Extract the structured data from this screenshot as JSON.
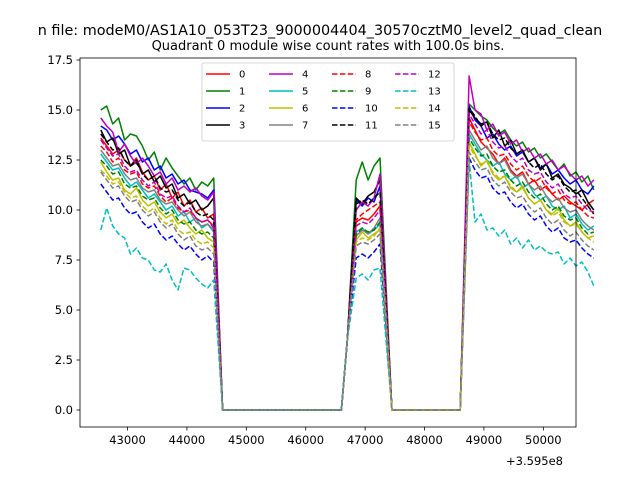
{
  "header": {
    "title_line1": "n file: modeM0/AS1A10_053T23_9000004404_30570cztM0_level2_quad_clean",
    "title_line2": "Quadrant 0 module wise count rates with 100.0s bins."
  },
  "chart_data": {
    "type": "line",
    "title": "Quadrant 0 module wise count rates with 100.0s bins.",
    "xlabel": "",
    "ylabel": "",
    "x_offset_label": "+3.595e8",
    "xlim": [
      42200,
      50550
    ],
    "ylim": [
      -0.85,
      17.6
    ],
    "xticks": [
      43000,
      44000,
      45000,
      46000,
      47000,
      48000,
      49000,
      50000
    ],
    "xtick_labels": [
      "43000",
      "44000",
      "45000",
      "46000",
      "47000",
      "48000",
      "49000",
      "50000"
    ],
    "yticks": [
      0,
      2.5,
      5,
      7.5,
      10,
      12.5,
      15,
      17.5
    ],
    "ytick_labels": [
      "0.0",
      "2.5",
      "5.0",
      "7.5",
      "10.0",
      "12.5",
      "15.0",
      "17.5"
    ],
    "legend_position": "upper-center",
    "legend_columns": 4,
    "series": [
      {
        "name": "0",
        "color": "#ff0000",
        "dash": "solid",
        "seg1": [
          13.6,
          13.2,
          12.8,
          13.0,
          12.5,
          12.2,
          12.6,
          11.9,
          11.5,
          11.7,
          11.0,
          11.3,
          10.6,
          10.9,
          10.2,
          10.5,
          9.9,
          10.1,
          9.6,
          9.8
        ],
        "seg2": [
          9.4,
          9.6,
          9.5,
          9.8,
          10.2
        ],
        "seg3": [
          14.6,
          14.0,
          13.4,
          13.1,
          12.8,
          12.3,
          12.6,
          12.0,
          11.7,
          11.9,
          11.3,
          11.5,
          11.0,
          11.2,
          10.8,
          10.5,
          10.7,
          10.4,
          10.2,
          10.0,
          10.3,
          10.5
        ]
      },
      {
        "name": "1",
        "color": "#008000",
        "dash": "solid",
        "seg1": [
          15.0,
          15.2,
          14.3,
          14.6,
          13.5,
          13.8,
          13.7,
          13.2,
          12.5,
          12.9,
          12.0,
          12.6,
          12.1,
          11.7,
          11.3,
          11.6,
          11.0,
          11.4,
          11.2,
          11.6
        ],
        "seg2": [
          11.5,
          12.4,
          11.5,
          12.2,
          12.6
        ],
        "seg3": [
          15.3,
          15.0,
          14.7,
          14.5,
          14.1,
          13.8,
          14.0,
          13.5,
          13.2,
          13.4,
          12.9,
          13.1,
          12.6,
          12.8,
          12.4,
          12.0,
          12.3,
          11.7,
          11.9,
          11.4,
          11.7,
          11.0
        ]
      },
      {
        "name": "2",
        "color": "#0000ff",
        "dash": "solid",
        "seg1": [
          14.2,
          14.0,
          13.5,
          13.7,
          13.3,
          12.8,
          13.0,
          12.4,
          12.6,
          12.0,
          12.2,
          11.6,
          11.8,
          11.3,
          11.5,
          11.0,
          10.9,
          10.8,
          10.6,
          11.0
        ],
        "seg2": [
          10.5,
          10.2,
          10.6,
          10.4,
          11.2
        ],
        "seg3": [
          15.2,
          14.5,
          14.2,
          13.6,
          13.8,
          13.3,
          13.0,
          13.2,
          12.7,
          12.9,
          12.4,
          12.6,
          12.1,
          12.3,
          11.8,
          12.0,
          11.6,
          11.3,
          11.5,
          11.0,
          10.8,
          11.2
        ]
      },
      {
        "name": "3",
        "color": "#000000",
        "dash": "solid",
        "seg1": [
          14.0,
          13.4,
          13.6,
          12.8,
          13.0,
          12.2,
          12.5,
          11.8,
          12.0,
          11.4,
          11.7,
          11.1,
          11.3,
          10.6,
          10.8,
          10.3,
          10.5,
          10.0,
          10.2,
          10.6
        ],
        "seg2": [
          10.6,
          10.3,
          10.7,
          10.9,
          11.5
        ],
        "seg3": [
          15.0,
          14.6,
          14.3,
          14.4,
          13.6,
          14.0,
          13.2,
          13.5,
          12.8,
          13.0,
          12.4,
          12.6,
          12.0,
          12.3,
          11.6,
          11.8,
          11.3,
          11.1,
          10.8,
          11.0,
          10.4,
          10.0
        ]
      },
      {
        "name": "4",
        "color": "#bf00bf",
        "dash": "solid",
        "seg1": [
          14.6,
          14.2,
          13.9,
          12.9,
          13.3,
          12.7,
          12.3,
          12.6,
          12.2,
          11.7,
          11.9,
          11.3,
          11.6,
          11.0,
          11.2,
          10.9,
          11.1,
          10.7,
          10.5,
          10.9
        ],
        "seg2": [
          10.0,
          10.4,
          10.2,
          10.6,
          11.8
        ],
        "seg3": [
          16.7,
          15.0,
          14.8,
          14.0,
          14.3,
          13.7,
          13.9,
          13.3,
          13.5,
          12.9,
          13.1,
          12.6,
          12.8,
          12.3,
          12.5,
          12.0,
          12.2,
          11.8,
          11.5,
          11.7,
          11.2,
          11.5
        ]
      },
      {
        "name": "5",
        "color": "#00bfbf",
        "dash": "solid",
        "seg1": [
          12.8,
          12.4,
          12.0,
          12.1,
          11.6,
          11.2,
          11.4,
          11.0,
          10.6,
          10.8,
          10.4,
          10.0,
          10.2,
          9.7,
          9.9,
          9.4,
          9.6,
          9.1,
          9.3,
          8.9
        ],
        "seg2": [
          8.9,
          9.1,
          8.8,
          9.0,
          9.3
        ],
        "seg3": [
          13.8,
          13.3,
          12.8,
          12.5,
          12.2,
          12.4,
          11.8,
          11.5,
          11.7,
          11.1,
          11.3,
          10.8,
          10.5,
          10.7,
          10.2,
          10.0,
          10.2,
          9.6,
          9.8,
          9.3,
          9.0,
          9.2
        ]
      },
      {
        "name": "6",
        "color": "#bfbf00",
        "dash": "solid",
        "seg1": [
          12.4,
          11.9,
          11.5,
          11.6,
          11.0,
          10.8,
          11.1,
          10.5,
          10.2,
          10.4,
          9.9,
          9.6,
          9.8,
          9.3,
          9.5,
          9.1,
          8.8,
          9.0,
          8.6,
          8.4
        ],
        "seg2": [
          8.5,
          8.9,
          8.6,
          8.8,
          9.0
        ],
        "seg3": [
          13.4,
          12.8,
          12.2,
          12.5,
          11.8,
          11.5,
          11.7,
          11.1,
          10.9,
          11.2,
          10.6,
          10.3,
          10.5,
          10.0,
          9.8,
          10.1,
          9.5,
          9.2,
          9.4,
          8.9,
          8.6,
          8.7
        ]
      },
      {
        "name": "7",
        "color": "#808080",
        "dash": "solid",
        "seg1": [
          13.0,
          12.6,
          12.2,
          12.3,
          11.8,
          11.5,
          11.6,
          11.1,
          10.9,
          11.0,
          10.5,
          10.3,
          10.4,
          10.0,
          9.7,
          9.9,
          9.4,
          9.2,
          9.3,
          9.0
        ],
        "seg2": [
          8.7,
          9.0,
          8.8,
          9.1,
          9.6
        ],
        "seg3": [
          14.0,
          13.5,
          13.0,
          13.2,
          12.6,
          12.3,
          12.5,
          11.9,
          11.6,
          11.8,
          11.3,
          11.0,
          11.2,
          10.7,
          10.4,
          10.6,
          10.1,
          9.9,
          10.0,
          9.5,
          9.2,
          9.0
        ]
      },
      {
        "name": "8",
        "color": "#ff0000",
        "dash": "dashed",
        "seg1": [
          13.2,
          12.9,
          12.4,
          12.6,
          12.0,
          11.8,
          11.9,
          11.3,
          11.1,
          11.2,
          10.7,
          10.4,
          10.6,
          10.1,
          9.9,
          10.0,
          9.6,
          9.4,
          9.5,
          9.2
        ],
        "seg2": [
          9.5,
          9.8,
          10.0,
          10.2,
          10.4
        ],
        "seg3": [
          14.4,
          13.9,
          13.5,
          13.6,
          13.0,
          12.7,
          12.8,
          12.3,
          12.0,
          12.2,
          11.7,
          11.4,
          11.6,
          11.1,
          10.8,
          11.0,
          10.5,
          10.3,
          10.4,
          10.0,
          9.7,
          9.6
        ]
      },
      {
        "name": "9",
        "color": "#008000",
        "dash": "dashed",
        "seg1": [
          12.5,
          12.2,
          11.8,
          11.9,
          11.3,
          11.1,
          11.2,
          10.7,
          10.5,
          10.6,
          10.1,
          9.8,
          10.0,
          9.5,
          9.3,
          9.4,
          9.0,
          8.8,
          8.9,
          8.6
        ],
        "seg2": [
          8.8,
          9.1,
          8.9,
          9.0,
          9.4
        ],
        "seg3": [
          13.6,
          13.1,
          12.7,
          12.8,
          12.2,
          11.9,
          12.0,
          11.5,
          11.2,
          11.4,
          10.9,
          10.6,
          10.8,
          10.3,
          10.0,
          10.2,
          9.7,
          9.5,
          9.6,
          9.1,
          8.8,
          8.9
        ]
      },
      {
        "name": "10",
        "color": "#0000ff",
        "dash": "dashed",
        "seg1": [
          11.3,
          10.9,
          10.5,
          10.6,
          10.1,
          9.8,
          9.9,
          9.4,
          9.1,
          9.3,
          8.8,
          8.5,
          8.7,
          8.3,
          8.0,
          8.2,
          7.8,
          7.5,
          7.7,
          7.4
        ],
        "seg2": [
          7.6,
          7.8,
          7.6,
          7.9,
          8.3
        ],
        "seg3": [
          12.6,
          12.0,
          11.6,
          11.7,
          11.1,
          10.8,
          10.9,
          10.4,
          10.1,
          10.3,
          9.8,
          9.5,
          9.7,
          9.2,
          8.9,
          9.1,
          8.6,
          8.4,
          8.5,
          8.1,
          7.8,
          7.6
        ]
      },
      {
        "name": "11",
        "color": "#000000",
        "dash": "dashed",
        "seg1": [
          13.8,
          13.4,
          13.0,
          13.1,
          12.5,
          12.2,
          12.4,
          11.8,
          11.5,
          11.7,
          11.1,
          10.9,
          11.0,
          10.5,
          10.2,
          10.4,
          9.9,
          9.7,
          9.8,
          9.5
        ],
        "seg2": [
          10.3,
          10.5,
          10.3,
          10.6,
          10.9
        ],
        "seg3": [
          15.1,
          14.7,
          14.2,
          14.4,
          13.8,
          13.5,
          13.6,
          13.1,
          12.8,
          13.0,
          12.4,
          12.1,
          12.3,
          11.8,
          11.5,
          11.7,
          11.2,
          10.9,
          11.0,
          10.6,
          10.2,
          9.8
        ]
      },
      {
        "name": "12",
        "color": "#bf00bf",
        "dash": "dashed",
        "seg1": [
          13.5,
          13.1,
          12.7,
          12.8,
          12.2,
          11.9,
          12.0,
          11.5,
          11.2,
          11.4,
          10.8,
          10.6,
          10.7,
          10.2,
          9.9,
          10.1,
          9.6,
          9.4,
          9.5,
          9.1
        ],
        "seg2": [
          9.2,
          9.4,
          9.3,
          9.6,
          10.0
        ],
        "seg3": [
          14.8,
          14.3,
          13.8,
          14.0,
          13.4,
          13.1,
          13.2,
          12.7,
          12.4,
          12.6,
          12.0,
          11.8,
          11.9,
          11.4,
          11.1,
          11.3,
          10.8,
          10.6,
          10.7,
          10.3,
          10.0,
          9.9
        ]
      },
      {
        "name": "13",
        "color": "#00bfbf",
        "dash": "dashed",
        "seg1": [
          9.0,
          10.1,
          9.2,
          8.8,
          8.6,
          7.8,
          8.1,
          7.6,
          7.5,
          7.0,
          6.9,
          7.3,
          6.5,
          6.0,
          7.1,
          7.0,
          6.6,
          6.3,
          6.1,
          6.5
        ],
        "seg2": [
          6.6,
          6.8,
          6.5,
          7.0,
          7.1
        ],
        "seg3": [
          12.5,
          9.4,
          9.8,
          9.0,
          9.1,
          8.7,
          9.0,
          8.3,
          8.6,
          8.1,
          8.5,
          8.0,
          8.2,
          7.9,
          7.8,
          7.9,
          7.3,
          7.6,
          7.2,
          7.4,
          6.9,
          6.2
        ]
      },
      {
        "name": "14",
        "color": "#bfbf00",
        "dash": "dashed",
        "seg1": [
          12.0,
          11.7,
          11.3,
          11.4,
          10.9,
          10.6,
          10.7,
          10.2,
          9.9,
          10.1,
          9.6,
          9.3,
          9.5,
          9.0,
          8.8,
          8.9,
          8.5,
          8.3,
          8.4,
          8.1
        ],
        "seg2": [
          8.4,
          8.6,
          8.5,
          8.7,
          9.1
        ],
        "seg3": [
          13.2,
          12.7,
          12.3,
          12.4,
          11.9,
          11.6,
          11.7,
          11.2,
          10.9,
          11.1,
          10.6,
          10.3,
          10.5,
          10.0,
          9.7,
          9.9,
          9.4,
          9.2,
          9.3,
          8.9,
          8.6,
          8.4
        ]
      },
      {
        "name": "15",
        "color": "#808080",
        "dash": "dashed",
        "seg1": [
          11.9,
          11.5,
          11.1,
          11.2,
          10.7,
          10.4,
          10.5,
          10.0,
          9.7,
          9.9,
          9.4,
          9.1,
          9.3,
          8.8,
          8.5,
          8.7,
          8.2,
          8.0,
          8.1,
          7.8
        ],
        "seg2": [
          8.2,
          8.4,
          8.3,
          8.5,
          8.8
        ],
        "seg3": [
          12.9,
          12.4,
          12.0,
          12.1,
          11.5,
          11.2,
          11.4,
          10.9,
          10.6,
          10.7,
          10.2,
          9.9,
          10.1,
          9.6,
          9.3,
          9.5,
          9.0,
          8.7,
          8.9,
          8.5,
          8.2,
          8.0
        ]
      }
    ]
  }
}
